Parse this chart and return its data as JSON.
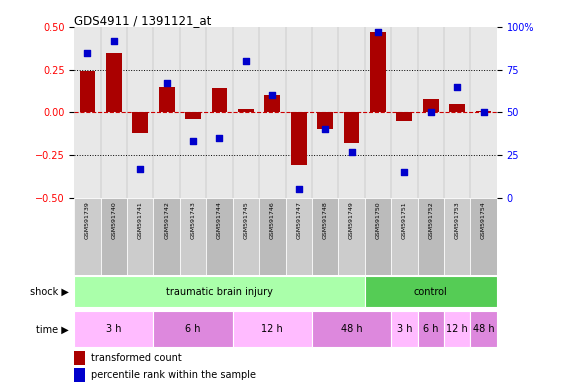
{
  "title": "GDS4911 / 1391121_at",
  "samples": [
    "GSM591739",
    "GSM591740",
    "GSM591741",
    "GSM591742",
    "GSM591743",
    "GSM591744",
    "GSM591745",
    "GSM591746",
    "GSM591747",
    "GSM591748",
    "GSM591749",
    "GSM591750",
    "GSM591751",
    "GSM591752",
    "GSM591753",
    "GSM591754"
  ],
  "red_bars": [
    0.24,
    0.35,
    -0.12,
    0.15,
    -0.04,
    0.14,
    0.02,
    0.1,
    -0.31,
    -0.1,
    -0.18,
    0.47,
    -0.05,
    0.08,
    0.05,
    0.01
  ],
  "blue_dots": [
    85,
    92,
    17,
    67,
    33,
    35,
    80,
    60,
    5,
    40,
    27,
    97,
    15,
    50,
    65,
    50
  ],
  "ylim_left": [
    -0.5,
    0.5
  ],
  "ylim_right": [
    0,
    100
  ],
  "yticks_left": [
    -0.5,
    -0.25,
    0,
    0.25,
    0.5
  ],
  "yticks_right": [
    0,
    25,
    50,
    75,
    100
  ],
  "shock_groups": [
    {
      "label": "traumatic brain injury",
      "start": 0,
      "end": 11,
      "color": "#aaffaa"
    },
    {
      "label": "control",
      "start": 11,
      "end": 16,
      "color": "#55cc55"
    }
  ],
  "time_groups": [
    {
      "label": "3 h",
      "start": 0,
      "end": 3,
      "color": "#ffbbff"
    },
    {
      "label": "6 h",
      "start": 3,
      "end": 6,
      "color": "#dd88dd"
    },
    {
      "label": "12 h",
      "start": 6,
      "end": 9,
      "color": "#ffbbff"
    },
    {
      "label": "48 h",
      "start": 9,
      "end": 12,
      "color": "#dd88dd"
    },
    {
      "label": "3 h",
      "start": 12,
      "end": 13,
      "color": "#ffbbff"
    },
    {
      "label": "6 h",
      "start": 13,
      "end": 14,
      "color": "#dd88dd"
    },
    {
      "label": "12 h",
      "start": 14,
      "end": 15,
      "color": "#ffbbff"
    },
    {
      "label": "48 h",
      "start": 15,
      "end": 16,
      "color": "#dd88dd"
    }
  ],
  "bar_color": "#aa0000",
  "dot_color": "#0000cc",
  "zeroline_color": "#cc0000",
  "bg_color": "#e8e8e8",
  "shock_label": "shock",
  "time_label": "time",
  "legend_bar_label": "transformed count",
  "legend_dot_label": "percentile rank within the sample",
  "sample_box_color": "#cccccc"
}
